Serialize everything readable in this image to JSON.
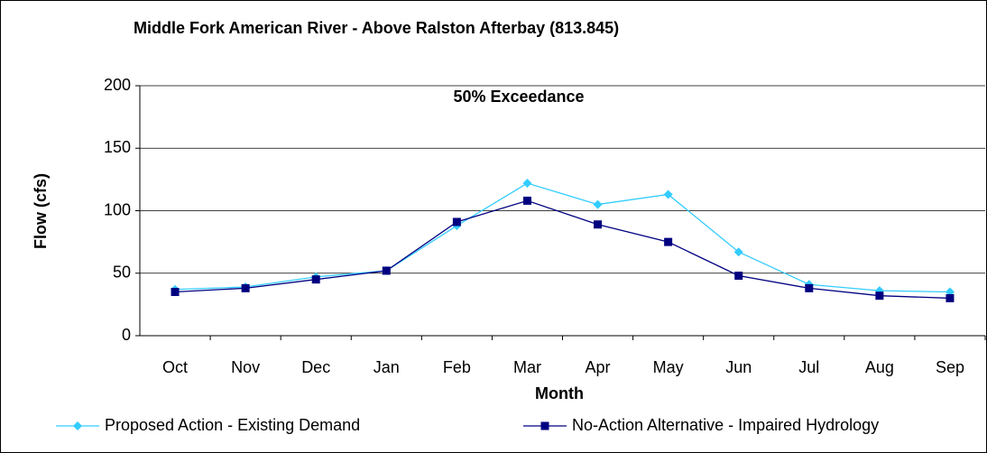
{
  "chart_data": {
    "type": "line",
    "title": "Middle Fork American River - Above Ralston Afterbay (813.845)",
    "annotation": "50% Exceedance",
    "x_label": "Month",
    "y_label": "Flow (cfs)",
    "categories": [
      "Oct",
      "Nov",
      "Dec",
      "Jan",
      "Feb",
      "Mar",
      "Apr",
      "May",
      "Jun",
      "Jul",
      "Aug",
      "Sep"
    ],
    "series": [
      {
        "name": "Proposed Action - Existing Demand",
        "color": "#33ccff",
        "marker": "diamond",
        "values": [
          37,
          39,
          47,
          52,
          88,
          122,
          105,
          113,
          67,
          41,
          36,
          35
        ]
      },
      {
        "name": "No-Action Alternative - Impaired Hydrology",
        "color": "#000080",
        "marker": "square",
        "values": [
          35,
          38,
          45,
          52,
          91,
          108,
          89,
          75,
          48,
          38,
          32,
          30
        ]
      }
    ],
    "ylim": [
      0,
      200
    ],
    "yticks": [
      0,
      50,
      100,
      150,
      200
    ],
    "grid": true,
    "legend": "bottom"
  }
}
